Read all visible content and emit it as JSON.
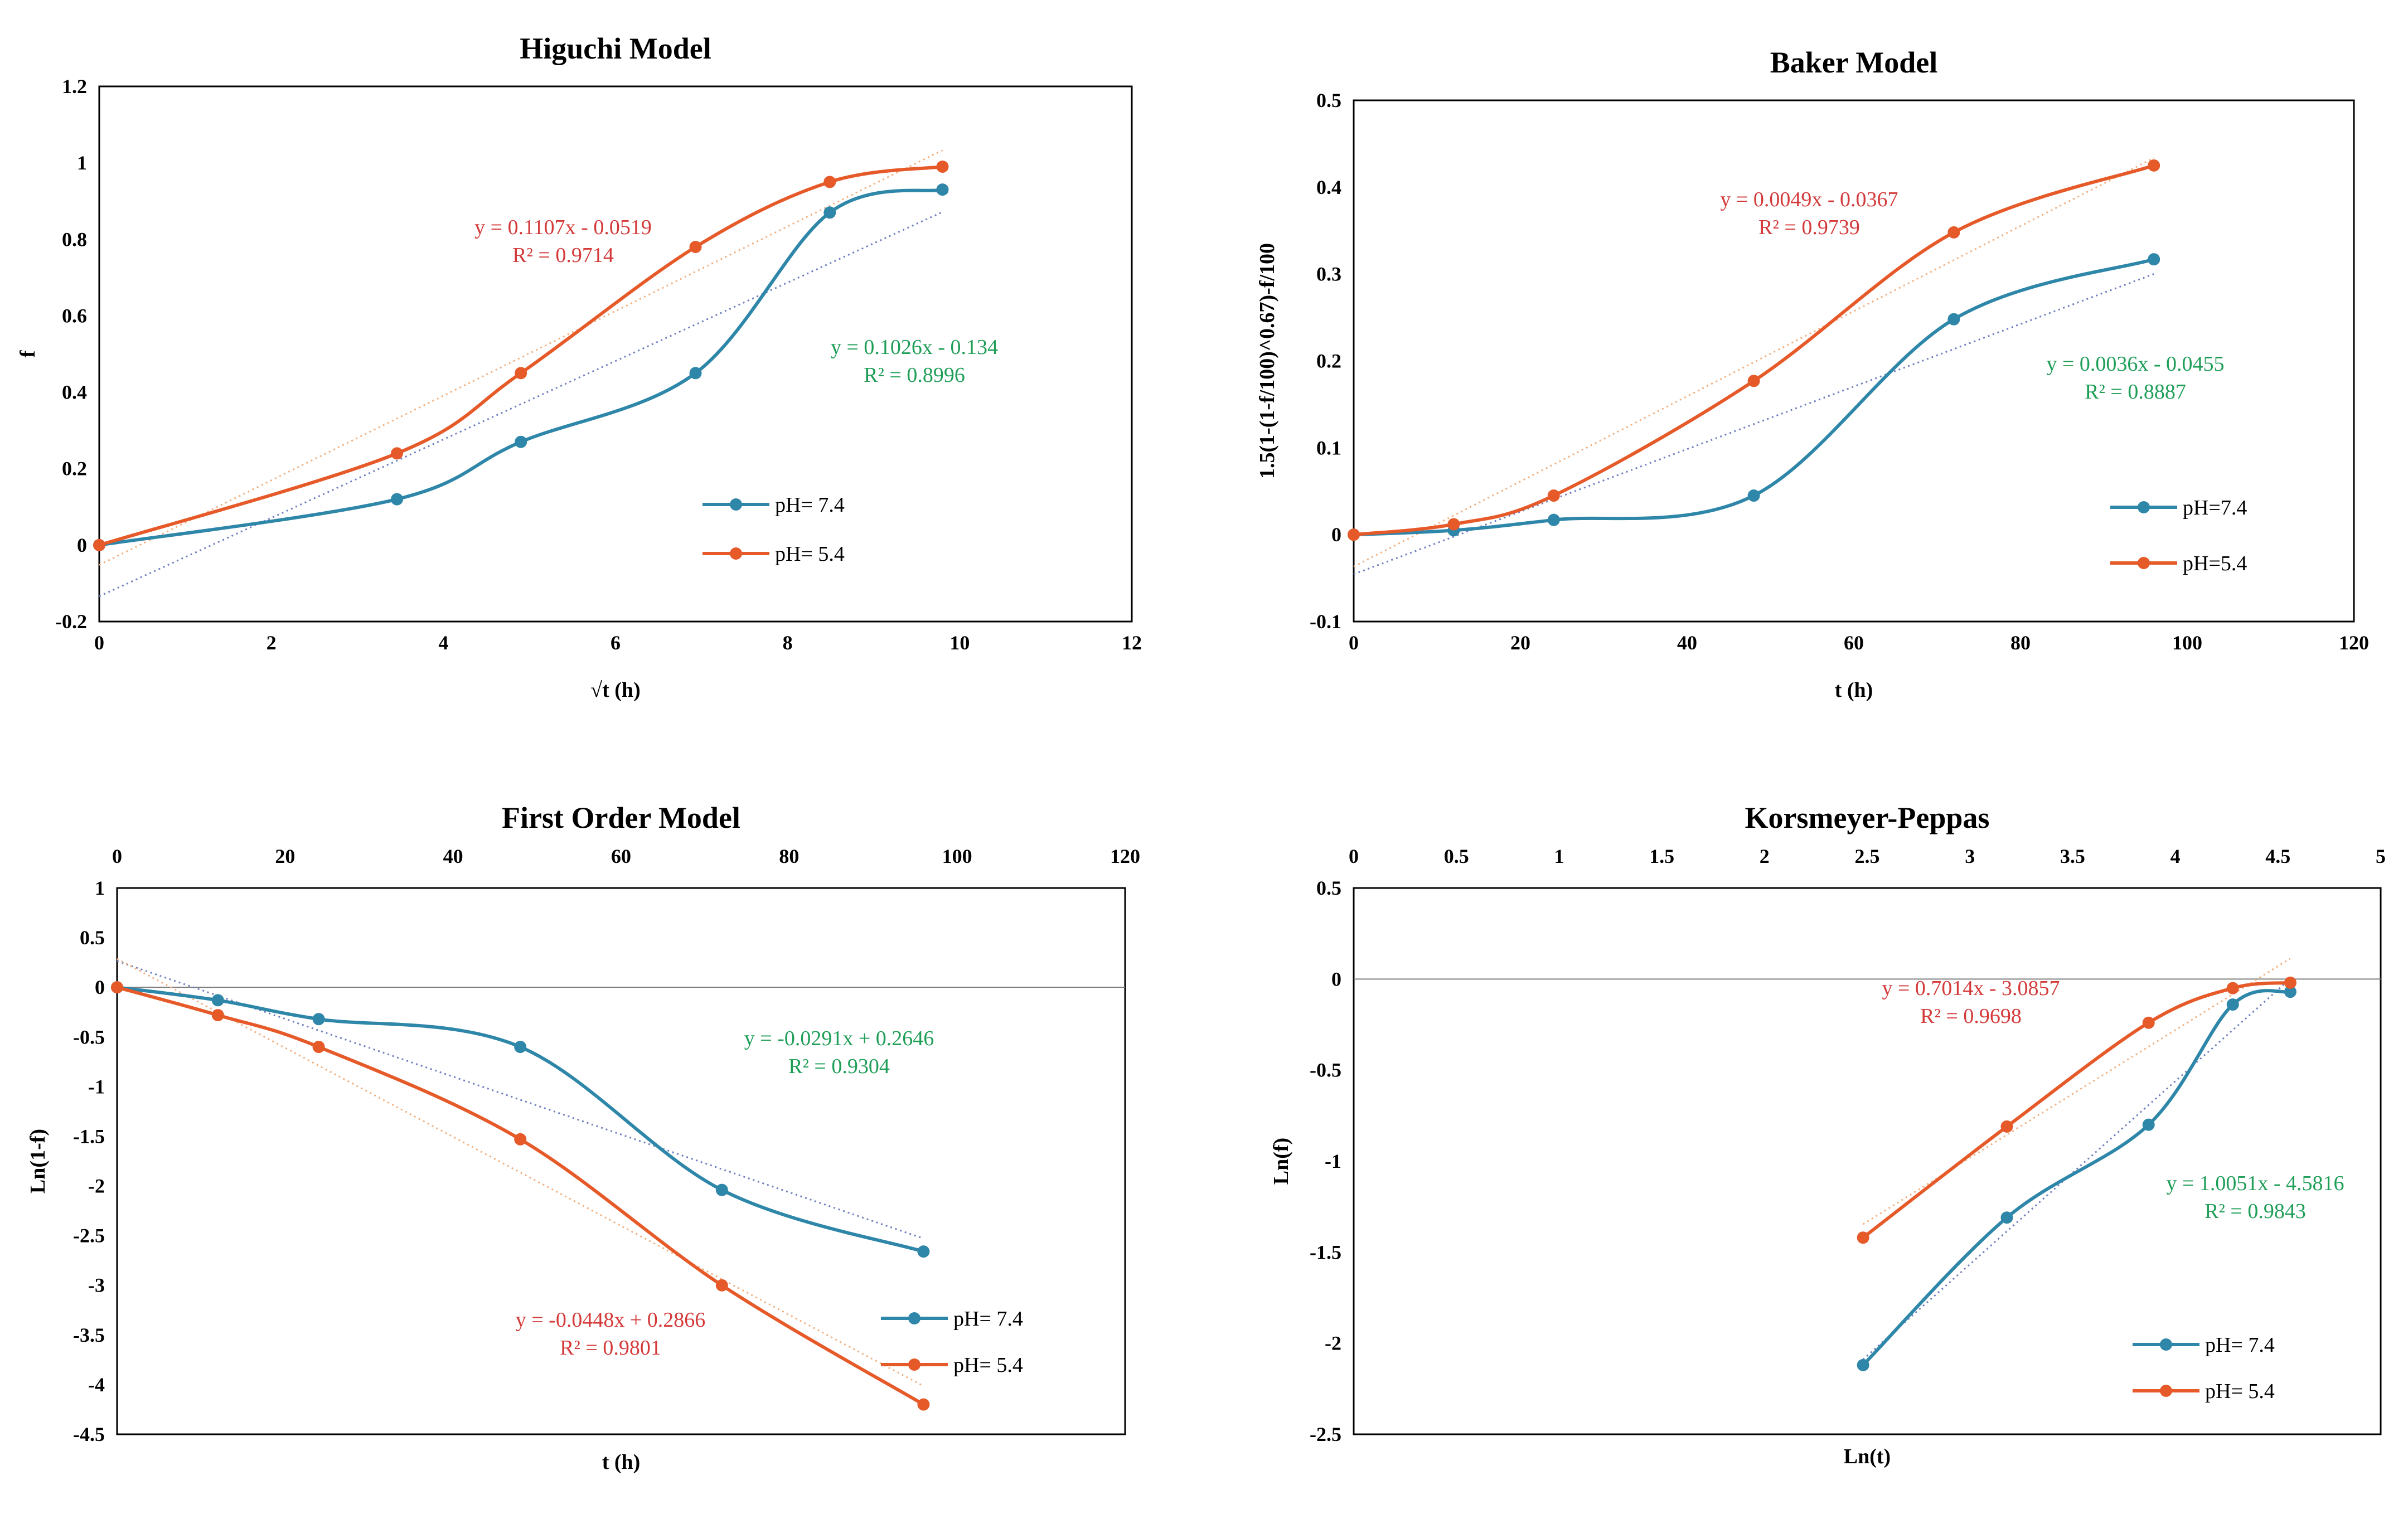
{
  "colors": {
    "ph74": "#2e86a8",
    "ph54": "#e65a2a",
    "eq74": "#1f9e58",
    "eq54": "#d43a3a",
    "trend74": "#6f7fbf",
    "trend54": "#f0b080"
  },
  "chart_data": [
    {
      "type": "line",
      "title": "Higuchi Model",
      "xlabel": "√t (h)",
      "ylabel": "f",
      "xlim": [
        0,
        12
      ],
      "ylim": [
        -0.2,
        1.2
      ],
      "x_ticks": [
        0,
        2,
        4,
        6,
        8,
        10,
        12
      ],
      "x_tick_labels": [
        "0",
        "2",
        "4",
        "6",
        "8",
        "10",
        "12"
      ],
      "y_ticks": [
        -0.2,
        0,
        0.2,
        0.4,
        0.6,
        0.8,
        1,
        1.2
      ],
      "y_tick_labels": [
        "-0.2",
        "0",
        "0.2",
        "0.4",
        "0.6",
        "0.8",
        "1",
        "1.2"
      ],
      "x_axis_position": "bottom",
      "series": [
        {
          "name": "pH= 7.4",
          "color_key": "ph74",
          "x": [
            0,
            3.46,
            4.9,
            6.93,
            8.49,
            9.8
          ],
          "y": [
            0,
            0.12,
            0.27,
            0.45,
            0.87,
            0.93
          ]
        },
        {
          "name": "pH= 5.4",
          "color_key": "ph54",
          "x": [
            0,
            3.46,
            4.9,
            6.93,
            8.49,
            9.8
          ],
          "y": [
            0,
            0.24,
            0.45,
            0.78,
            0.95,
            0.99
          ]
        }
      ],
      "trendlines": [
        {
          "series": "pH= 7.4",
          "slope": 0.1026,
          "intercept": -0.134,
          "x_range": [
            0,
            9.8
          ],
          "equation": "y = 0.1026x  - 0.134",
          "r2": "R² = 0.8996"
        },
        {
          "series": "pH= 5.4",
          "slope": 0.1107,
          "intercept": -0.0519,
          "x_range": [
            0,
            9.8
          ],
          "equation": "y = 0.1107x  - 0.0519",
          "r2": "R² = 0.9714"
        }
      ],
      "legend": [
        "pH= 7.4",
        "pH= 5.4"
      ]
    },
    {
      "type": "line",
      "title": "Baker Model",
      "xlabel": "t (h)",
      "ylabel": "1.5(1-(1-f/100)^0.67)-f/100",
      "xlim": [
        0,
        120
      ],
      "ylim": [
        -0.1,
        0.5
      ],
      "x_ticks": [
        0,
        20,
        40,
        60,
        80,
        100,
        120
      ],
      "x_tick_labels": [
        "0",
        "20",
        "40",
        "60",
        "80",
        "100",
        "120"
      ],
      "y_ticks": [
        -0.1,
        0,
        0.1,
        0.2,
        0.3,
        0.4,
        0.5
      ],
      "y_tick_labels": [
        "-0.1",
        "0",
        "0.1",
        "0.2",
        "0.3",
        "0.4",
        "0.5"
      ],
      "x_axis_position": "bottom",
      "series": [
        {
          "name": "pH=7.4",
          "color_key": "ph74",
          "x": [
            0,
            12,
            24,
            48,
            72,
            96
          ],
          "y": [
            0,
            0.005,
            0.017,
            0.045,
            0.248,
            0.317
          ]
        },
        {
          "name": "pH=5.4",
          "color_key": "ph54",
          "x": [
            0,
            12,
            24,
            48,
            72,
            96
          ],
          "y": [
            0,
            0.012,
            0.045,
            0.177,
            0.348,
            0.425
          ]
        }
      ],
      "trendlines": [
        {
          "series": "pH=7.4",
          "slope": 0.0036,
          "intercept": -0.0455,
          "x_range": [
            0,
            96
          ],
          "equation": "y = 0.0036x  - 0.0455",
          "r2": "R² = 0.8887"
        },
        {
          "series": "pH=5.4",
          "slope": 0.0049,
          "intercept": -0.0367,
          "x_range": [
            0,
            96
          ],
          "equation": "y = 0.0049x  - 0.0367",
          "r2": "R² = 0.9739"
        }
      ],
      "legend": [
        "pH=7.4",
        "pH=5.4"
      ]
    },
    {
      "type": "line",
      "title": "First Order Model",
      "xlabel": "t (h)",
      "ylabel": "Ln(1-f)",
      "xlim": [
        0,
        120
      ],
      "ylim": [
        -4.5,
        1
      ],
      "x_ticks": [
        0,
        20,
        40,
        60,
        80,
        100,
        120
      ],
      "x_tick_labels": [
        "0",
        "20",
        "40",
        "60",
        "80",
        "100",
        "120"
      ],
      "y_ticks": [
        -4.5,
        -4,
        -3.5,
        -3,
        -2.5,
        -2,
        -1.5,
        -1,
        -0.5,
        0,
        0.5,
        1
      ],
      "y_tick_labels": [
        "-4.5",
        "-4",
        "-3.5",
        "-3",
        "-2.5",
        "-2",
        "-1.5",
        "-1",
        "-0.5",
        "0",
        "0.5",
        "1"
      ],
      "x_axis_position": "top",
      "series": [
        {
          "name": "pH= 7.4",
          "color_key": "ph74",
          "x": [
            0,
            12,
            24,
            48,
            72,
            96
          ],
          "y": [
            0,
            -0.13,
            -0.32,
            -0.6,
            -2.04,
            -2.66
          ]
        },
        {
          "name": "pH= 5.4",
          "color_key": "ph54",
          "x": [
            0,
            12,
            24,
            48,
            72,
            96
          ],
          "y": [
            0,
            -0.28,
            -0.6,
            -1.53,
            -3.0,
            -4.2
          ]
        }
      ],
      "trendlines": [
        {
          "series": "pH= 7.4",
          "slope": -0.0291,
          "intercept": 0.2646,
          "x_range": [
            0,
            96
          ],
          "equation": "y = -0.0291x  + 0.2646",
          "r2": "R² = 0.9304"
        },
        {
          "series": "pH= 5.4",
          "slope": -0.0448,
          "intercept": 0.2866,
          "x_range": [
            0,
            96
          ],
          "equation": "y = -0.0448x  + 0.2866",
          "r2": "R² = 0.9801"
        }
      ],
      "legend": [
        "pH= 7.4",
        "pH= 5.4"
      ]
    },
    {
      "type": "line",
      "title": "Korsmeyer-Peppas",
      "xlabel": "Ln(t)",
      "ylabel": "Ln(f)",
      "xlim": [
        0,
        5
      ],
      "ylim": [
        -2.5,
        0.5
      ],
      "x_ticks": [
        0,
        0.5,
        1,
        1.5,
        2,
        2.5,
        3,
        3.5,
        4,
        4.5,
        5
      ],
      "x_tick_labels": [
        "0",
        "0.5",
        "1",
        "1.5",
        "2",
        "2.5",
        "3",
        "3.5",
        "4",
        "4.5",
        "5"
      ],
      "y_ticks": [
        -2.5,
        -2,
        -1.5,
        -1,
        -0.5,
        0,
        0.5
      ],
      "y_tick_labels": [
        "-2.5",
        "-2",
        "-1.5",
        "-1",
        "-0.5",
        "0",
        "0.5"
      ],
      "x_axis_position": "top",
      "series": [
        {
          "name": "pH= 7.4",
          "color_key": "ph74",
          "x": [
            2.48,
            3.18,
            3.87,
            4.28,
            4.56
          ],
          "y": [
            -2.12,
            -1.31,
            -0.8,
            -0.14,
            -0.07
          ]
        },
        {
          "name": "pH= 5.4",
          "color_key": "ph54",
          "x": [
            2.48,
            3.18,
            3.87,
            4.28,
            4.56
          ],
          "y": [
            -1.42,
            -0.81,
            -0.24,
            -0.05,
            -0.02
          ]
        }
      ],
      "trendlines": [
        {
          "series": "pH= 7.4",
          "slope": 1.0051,
          "intercept": -4.5816,
          "x_range": [
            2.48,
            4.56
          ],
          "equation": "y = 1.0051x  - 4.5816",
          "r2": "R² = 0.9843"
        },
        {
          "series": "pH= 5.4",
          "slope": 0.7014,
          "intercept": -3.0857,
          "x_range": [
            2.48,
            4.56
          ],
          "equation": "y = 0.7014x  - 3.0857",
          "r2": "R² = 0.9698"
        }
      ],
      "legend": [
        "pH= 7.4",
        "pH= 5.4"
      ]
    }
  ]
}
